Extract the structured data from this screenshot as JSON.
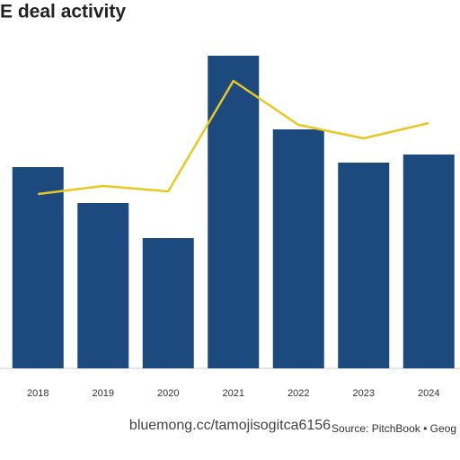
{
  "chart_data": {
    "type": "bar",
    "title": "E deal activity",
    "categories": [
      "2018",
      "2019",
      "2020",
      "2021",
      "2022",
      "2023",
      "2024"
    ],
    "series": [
      {
        "type": "bar",
        "color": "#1c4a7e",
        "values": [
          224,
          184,
          145,
          348,
          266,
          229,
          238
        ]
      },
      {
        "type": "line",
        "color": "#e8c822",
        "values": [
          194,
          203,
          197,
          320,
          271,
          256,
          273
        ]
      }
    ],
    "ylim": [
      0,
      350
    ],
    "source": "Source: PitchBook • Geog",
    "watermark": "bluemong.cc/tamojisogitca6156"
  }
}
